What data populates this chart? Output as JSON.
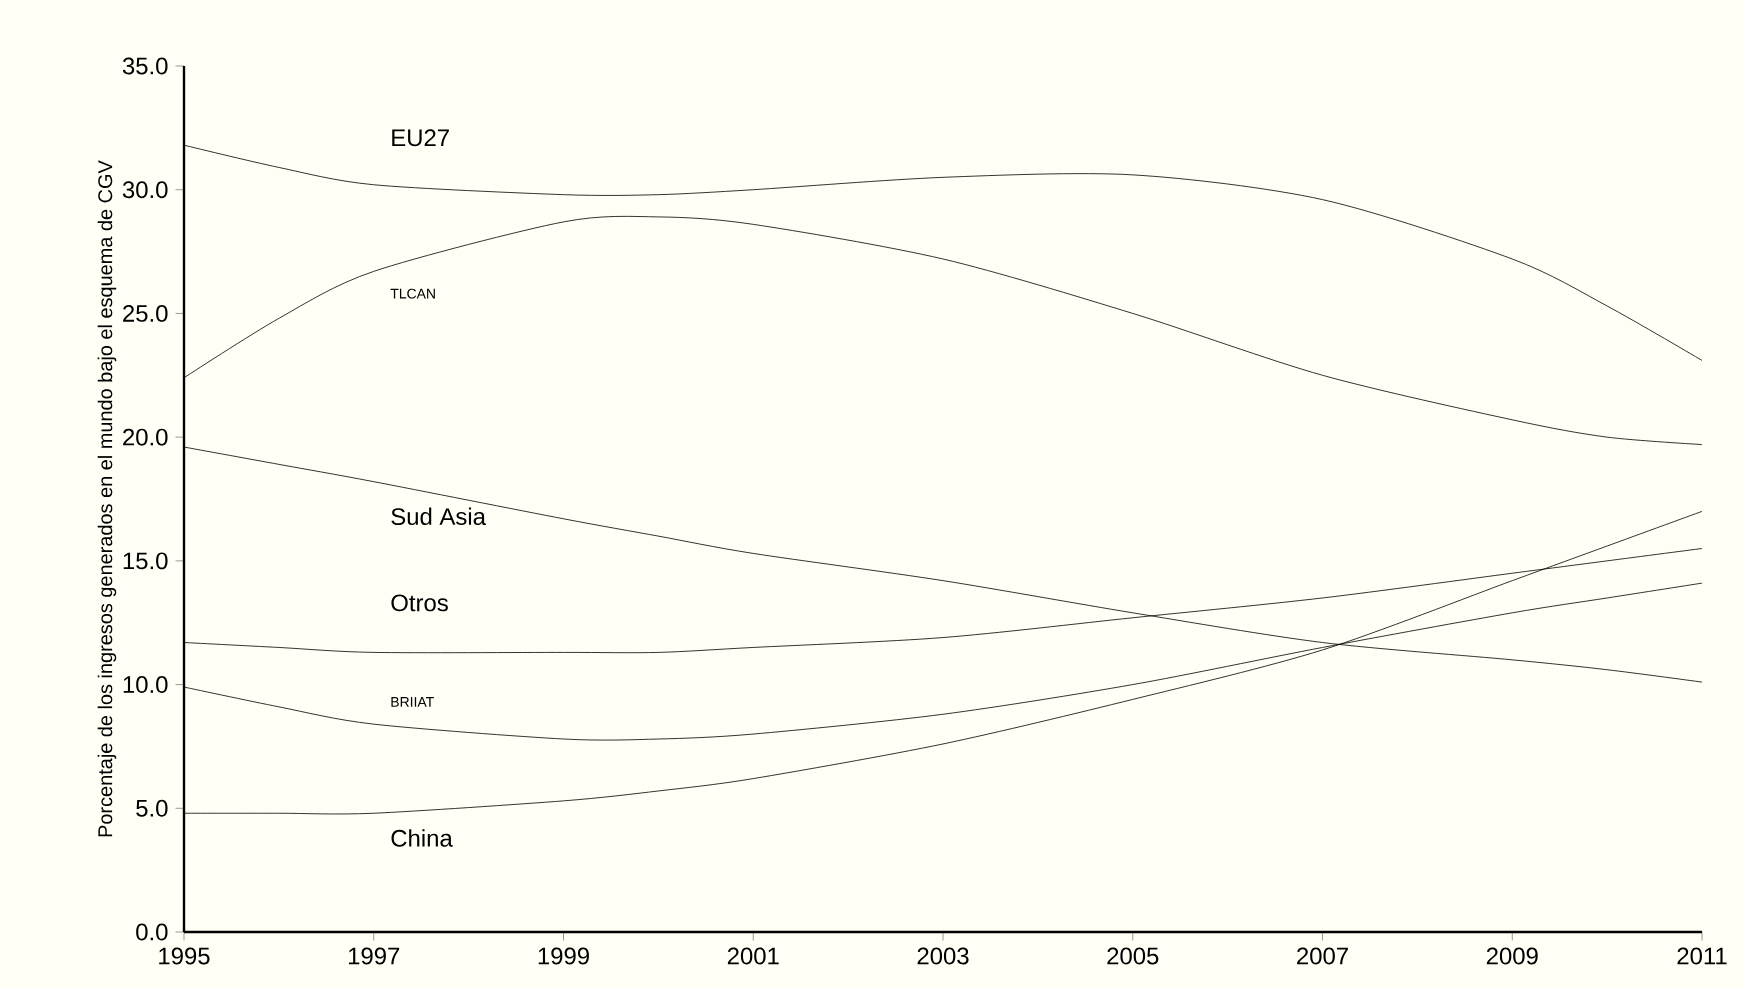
{
  "chart_data": {
    "type": "line",
    "ylabel": "Porcentaje de los ingresos generados en el mundo bajo el esquema de CGV",
    "x": [
      1995,
      1996,
      1997,
      1999,
      2000,
      2001,
      2003,
      2005,
      2007,
      2009,
      2010,
      2011
    ],
    "series": [
      {
        "name": "EU27",
        "color": "#000000",
        "values": [
          31.8,
          30.9,
          30.2,
          29.8,
          29.8,
          30.0,
          30.5,
          30.6,
          29.6,
          27.2,
          25.3,
          23.1
        ]
      },
      {
        "name": "TLCAN",
        "color": "#000000",
        "values": [
          22.4,
          24.8,
          26.7,
          28.7,
          28.9,
          28.6,
          27.2,
          25.0,
          22.5,
          20.7,
          20.0,
          19.7
        ]
      },
      {
        "name": "Sud Asia",
        "color": "#000000",
        "values": [
          19.6,
          18.9,
          18.2,
          16.7,
          16.0,
          15.3,
          14.2,
          12.9,
          11.7,
          11.0,
          10.6,
          10.1
        ]
      },
      {
        "name": "Otros",
        "color": "#000000",
        "values": [
          11.7,
          11.5,
          11.3,
          11.3,
          11.3,
          11.5,
          11.9,
          12.7,
          13.5,
          14.5,
          15.0,
          15.5
        ]
      },
      {
        "name": "BRIIAT",
        "color": "#000000",
        "values": [
          9.9,
          9.1,
          8.4,
          7.8,
          7.8,
          8.0,
          8.8,
          10.0,
          11.5,
          12.9,
          13.5,
          14.1
        ]
      },
      {
        "name": "China",
        "color": "#000000",
        "values": [
          4.8,
          4.8,
          4.8,
          5.3,
          5.7,
          6.2,
          7.6,
          9.4,
          11.4,
          14.2,
          15.6,
          17.0
        ]
      }
    ],
    "xlim": [
      1995,
      2011
    ],
    "xticks": [
      1995,
      1997,
      1999,
      2001,
      2003,
      2005,
      2007,
      2009,
      2011
    ],
    "ylim": [
      0,
      35
    ],
    "yticks": [
      {
        "value": 0,
        "label": "0.0"
      },
      {
        "value": 5,
        "label": "5.0"
      },
      {
        "value": 10,
        "label": "10.0"
      },
      {
        "value": 15,
        "label": "15.0"
      },
      {
        "value": 20,
        "label": "20.0"
      },
      {
        "value": 25,
        "label": "25.0"
      },
      {
        "value": 30,
        "label": "30.0"
      },
      {
        "value": 35,
        "label": "35.0"
      }
    ],
    "grid": false,
    "marker": "none",
    "line_style": "solid"
  }
}
